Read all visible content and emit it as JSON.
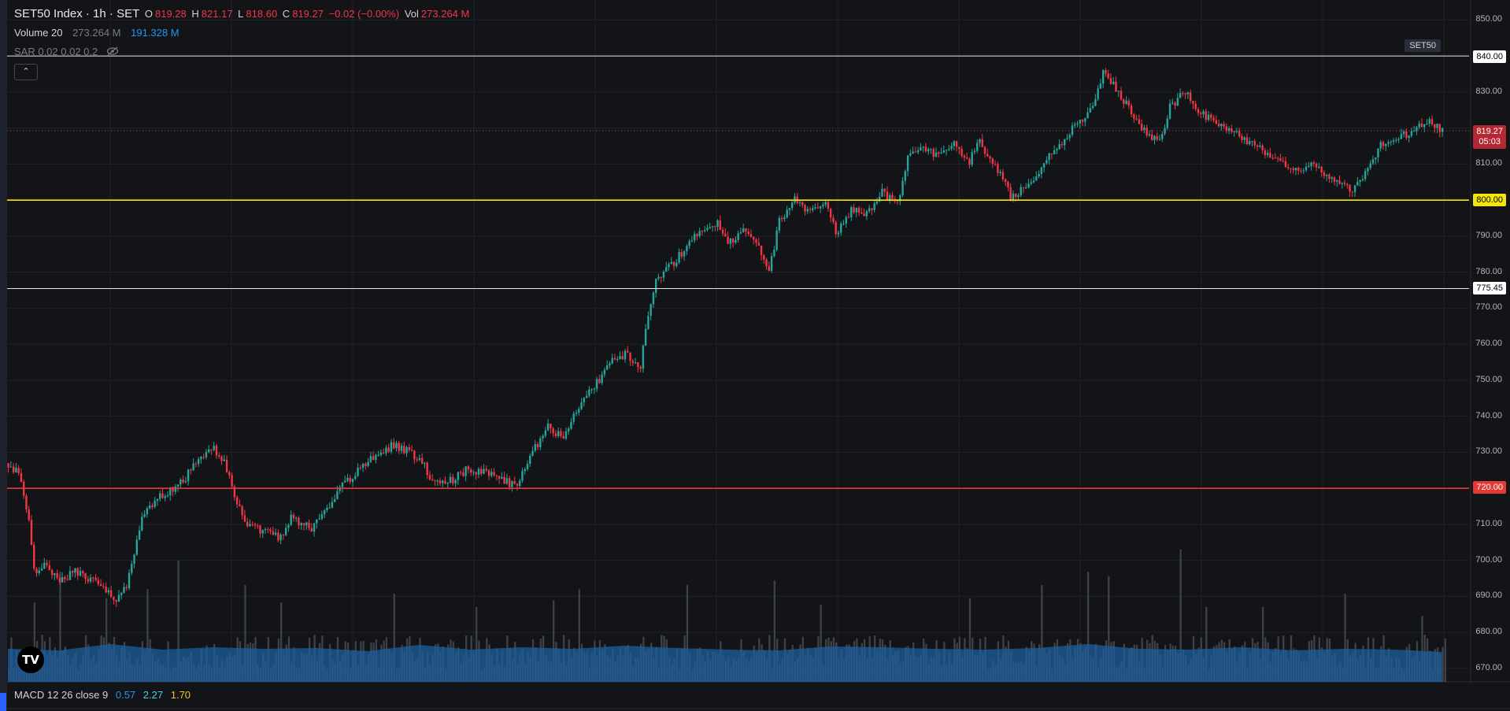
{
  "legend": {
    "title": "SET50 Index · 1h · SET",
    "o_label": "O",
    "o_value": "819.28",
    "h_label": "H",
    "h_value": "821.17",
    "l_label": "L",
    "l_value": "818.60",
    "c_label": "C",
    "c_value": "819.27",
    "change": "−0.02 (−0.00%)",
    "vol_label": "Vol",
    "vol_value": "273.264 M"
  },
  "volume_legend": {
    "label": "Volume 20",
    "value1": "273.264 M",
    "value2": "191.328 M"
  },
  "sar_legend": {
    "label": "SAR 0.02 0.02 0.2",
    "icon": "eye-off-icon"
  },
  "collapse_icon": "chevron-up-icon",
  "symbol_tag": "SET50",
  "macd_legend": {
    "label": "MACD 12 26 close 9",
    "v1": "0.57",
    "v2": "2.27",
    "v3": "1.70"
  },
  "price_tags": {
    "line_840": "840.00",
    "current_price": "819.27",
    "countdown": "05:03",
    "line_800": "800.00",
    "line_775": "775.45",
    "line_720": "720.00"
  },
  "axis_ticks": [
    "850.00",
    "830.00",
    "810.00",
    "790.00",
    "780.00",
    "770.00",
    "760.00",
    "750.00",
    "740.00",
    "730.00",
    "710.00",
    "700.00",
    "690.00",
    "680.00",
    "670.00"
  ],
  "colors": {
    "up": "#26a69a",
    "down": "#f23645",
    "hline_yellow": "#f5e50a",
    "hline_red": "#e53935",
    "hline_white": "#e6e6e6",
    "volume": "#4a4d55",
    "volume_ma": "#1e5f9e"
  },
  "chart_data": {
    "type": "candlestick",
    "title": "SET50 Index · 1h · SET",
    "ylim": [
      665,
      852
    ],
    "yticks": [
      670,
      680,
      690,
      700,
      710,
      720,
      730,
      740,
      750,
      760,
      770,
      780,
      790,
      800,
      810,
      820,
      830,
      840,
      850
    ],
    "grid": true,
    "horizontal_lines": [
      840.0,
      800.0,
      775.45,
      720.0
    ],
    "last_price": 819.27,
    "close_path": [
      [
        0,
        727
      ],
      [
        4,
        724
      ],
      [
        8,
        712
      ],
      [
        10,
        697
      ],
      [
        14,
        699
      ],
      [
        20,
        694
      ],
      [
        26,
        697
      ],
      [
        32,
        695
      ],
      [
        38,
        691
      ],
      [
        42,
        689
      ],
      [
        46,
        693
      ],
      [
        52,
        712
      ],
      [
        58,
        717
      ],
      [
        62,
        719
      ],
      [
        68,
        722
      ],
      [
        74,
        729
      ],
      [
        80,
        731
      ],
      [
        84,
        727
      ],
      [
        88,
        718
      ],
      [
        92,
        710
      ],
      [
        100,
        708
      ],
      [
        106,
        706
      ],
      [
        110,
        712
      ],
      [
        118,
        709
      ],
      [
        124,
        714
      ],
      [
        130,
        721
      ],
      [
        138,
        726
      ],
      [
        144,
        730
      ],
      [
        150,
        732
      ],
      [
        156,
        730
      ],
      [
        162,
        726
      ],
      [
        166,
        721
      ],
      [
        172,
        722
      ],
      [
        178,
        725
      ],
      [
        186,
        725
      ],
      [
        192,
        722
      ],
      [
        198,
        721
      ],
      [
        204,
        730
      ],
      [
        210,
        737
      ],
      [
        216,
        734
      ],
      [
        222,
        743
      ],
      [
        228,
        748
      ],
      [
        234,
        755
      ],
      [
        240,
        757
      ],
      [
        246,
        754
      ],
      [
        248,
        765
      ],
      [
        252,
        778
      ],
      [
        258,
        782
      ],
      [
        264,
        787
      ],
      [
        270,
        792
      ],
      [
        276,
        794
      ],
      [
        280,
        788
      ],
      [
        286,
        792
      ],
      [
        292,
        787
      ],
      [
        296,
        780
      ],
      [
        300,
        794
      ],
      [
        306,
        800
      ],
      [
        312,
        797
      ],
      [
        318,
        799
      ],
      [
        322,
        791
      ],
      [
        328,
        797
      ],
      [
        334,
        796
      ],
      [
        340,
        802
      ],
      [
        346,
        799
      ],
      [
        350,
        812
      ],
      [
        356,
        815
      ],
      [
        362,
        812
      ],
      [
        368,
        816
      ],
      [
        374,
        811
      ],
      [
        378,
        816
      ],
      [
        384,
        809
      ],
      [
        388,
        806
      ],
      [
        390,
        800
      ],
      [
        394,
        803
      ],
      [
        400,
        807
      ],
      [
        404,
        812
      ],
      [
        410,
        815
      ],
      [
        416,
        822
      ],
      [
        422,
        825
      ],
      [
        426,
        835
      ],
      [
        432,
        830
      ],
      [
        438,
        823
      ],
      [
        444,
        818
      ],
      [
        448,
        816
      ],
      [
        452,
        826
      ],
      [
        458,
        830
      ],
      [
        462,
        826
      ],
      [
        468,
        822
      ],
      [
        474,
        820
      ],
      [
        480,
        817
      ],
      [
        486,
        815
      ],
      [
        492,
        812
      ],
      [
        498,
        809
      ],
      [
        504,
        808
      ],
      [
        508,
        811
      ],
      [
        512,
        807
      ],
      [
        518,
        804
      ],
      [
        524,
        803
      ],
      [
        528,
        808
      ],
      [
        534,
        815
      ],
      [
        540,
        817
      ],
      [
        546,
        819
      ],
      [
        552,
        822
      ],
      [
        558,
        819.27
      ]
    ],
    "volume_profile": [
      [
        0,
        10
      ],
      [
        20,
        8
      ],
      [
        40,
        16
      ],
      [
        60,
        9
      ],
      [
        80,
        12
      ],
      [
        100,
        10
      ],
      [
        120,
        11
      ],
      [
        140,
        7
      ],
      [
        160,
        15
      ],
      [
        180,
        9
      ],
      [
        200,
        12
      ],
      [
        220,
        10
      ],
      [
        240,
        14
      ],
      [
        260,
        11
      ],
      [
        280,
        9
      ],
      [
        300,
        8
      ],
      [
        320,
        13
      ],
      [
        340,
        12
      ],
      [
        360,
        10
      ],
      [
        380,
        9
      ],
      [
        400,
        11
      ],
      [
        420,
        16
      ],
      [
        440,
        10
      ],
      [
        460,
        9
      ],
      [
        480,
        12
      ],
      [
        500,
        8
      ],
      [
        520,
        10
      ],
      [
        540,
        9
      ],
      [
        558,
        6
      ]
    ],
    "volume_spikes": [
      [
        10,
        0.36
      ],
      [
        20,
        0.5
      ],
      [
        38,
        0.38
      ],
      [
        54,
        0.42
      ],
      [
        66,
        0.55
      ],
      [
        92,
        0.44
      ],
      [
        106,
        0.36
      ],
      [
        150,
        0.4
      ],
      [
        182,
        0.34
      ],
      [
        212,
        0.37
      ],
      [
        222,
        0.42
      ],
      [
        264,
        0.44
      ],
      [
        298,
        0.46
      ],
      [
        316,
        0.35
      ],
      [
        374,
        0.38
      ],
      [
        402,
        0.44
      ],
      [
        420,
        0.5
      ],
      [
        428,
        0.48
      ],
      [
        456,
        0.6
      ],
      [
        466,
        0.34
      ],
      [
        488,
        0.34
      ],
      [
        520,
        0.4
      ],
      [
        550,
        0.3
      ]
    ]
  }
}
